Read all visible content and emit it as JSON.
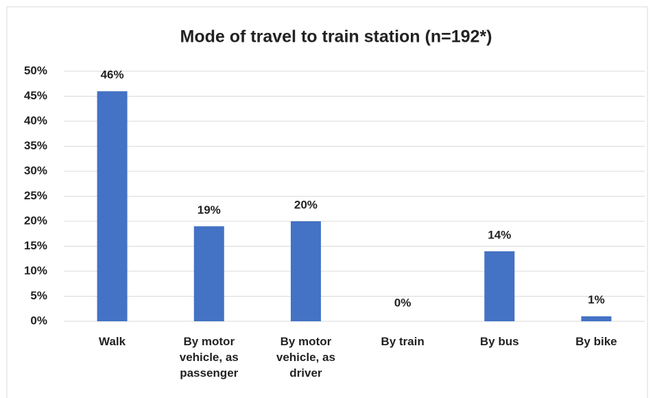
{
  "chart_data": {
    "type": "bar",
    "title": "Mode of travel to train station (n=192*)",
    "categories": [
      "Walk",
      "By motor vehicle, as passenger",
      "By motor vehicle, as driver",
      "By train",
      "By bus",
      "By bike"
    ],
    "values": [
      46,
      19,
      20,
      0,
      14,
      1
    ],
    "value_labels": [
      "46%",
      "19%",
      "20%",
      "0%",
      "14%",
      "1%"
    ],
    "color": "#4472c4",
    "ylim": [
      0,
      50
    ],
    "yticks": [
      {
        "value": 0,
        "label": "0%"
      },
      {
        "value": 5,
        "label": "5%"
      },
      {
        "value": 10,
        "label": "10%"
      },
      {
        "value": 15,
        "label": "15%"
      },
      {
        "value": 20,
        "label": "20%"
      },
      {
        "value": 25,
        "label": "25%"
      },
      {
        "value": 30,
        "label": "30%"
      },
      {
        "value": 35,
        "label": "35%"
      },
      {
        "value": 40,
        "label": "40%"
      },
      {
        "value": 45,
        "label": "45%"
      },
      {
        "value": 50,
        "label": "50%"
      }
    ],
    "grid": true
  }
}
